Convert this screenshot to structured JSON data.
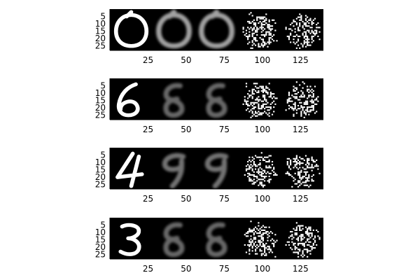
{
  "chart_data": {
    "type": "heatmap",
    "colormap": "grayscale",
    "background_color": "#000000",
    "grid": false,
    "legend": "none",
    "panels": [
      {
        "digit": "0",
        "xlim": [
          0,
          140
        ],
        "ylim": [
          0,
          28
        ],
        "xticks": [
          "25",
          "50",
          "75",
          "100",
          "125"
        ],
        "yticks": [
          "5",
          "10",
          "15",
          "20",
          "25"
        ],
        "tiles": [
          "original",
          "reconstruction",
          "reconstruction",
          "noisy-sample",
          "noisy-sample"
        ],
        "tile_intensity": [
          1.0,
          0.7,
          0.7,
          1.0,
          1.0
        ]
      },
      {
        "digit": "6",
        "xlim": [
          0,
          140
        ],
        "ylim": [
          0,
          28
        ],
        "xticks": [
          "25",
          "50",
          "75",
          "100",
          "125"
        ],
        "yticks": [
          "5",
          "10",
          "15",
          "20",
          "25"
        ],
        "tiles": [
          "original",
          "reconstruction",
          "reconstruction",
          "noisy-sample",
          "noisy-sample"
        ],
        "tile_intensity": [
          1.0,
          0.45,
          0.45,
          1.0,
          1.0
        ]
      },
      {
        "digit": "4",
        "xlim": [
          0,
          140
        ],
        "ylim": [
          0,
          28
        ],
        "xticks": [
          "25",
          "50",
          "75",
          "100",
          "125"
        ],
        "yticks": [
          "5",
          "10",
          "15",
          "20",
          "25"
        ],
        "tiles": [
          "original",
          "reconstruction",
          "reconstruction",
          "noisy-sample",
          "noisy-sample"
        ],
        "tile_intensity": [
          1.0,
          0.5,
          0.5,
          1.0,
          1.0
        ]
      },
      {
        "digit": "3",
        "xlim": [
          0,
          140
        ],
        "ylim": [
          0,
          28
        ],
        "xticks": [
          "25",
          "50",
          "75",
          "100",
          "125"
        ],
        "yticks": [
          "5",
          "10",
          "15",
          "20",
          "25"
        ],
        "tiles": [
          "original",
          "reconstruction",
          "reconstruction",
          "noisy-sample",
          "noisy-sample"
        ],
        "tile_intensity": [
          1.0,
          0.45,
          0.45,
          1.0,
          1.0
        ]
      }
    ]
  }
}
